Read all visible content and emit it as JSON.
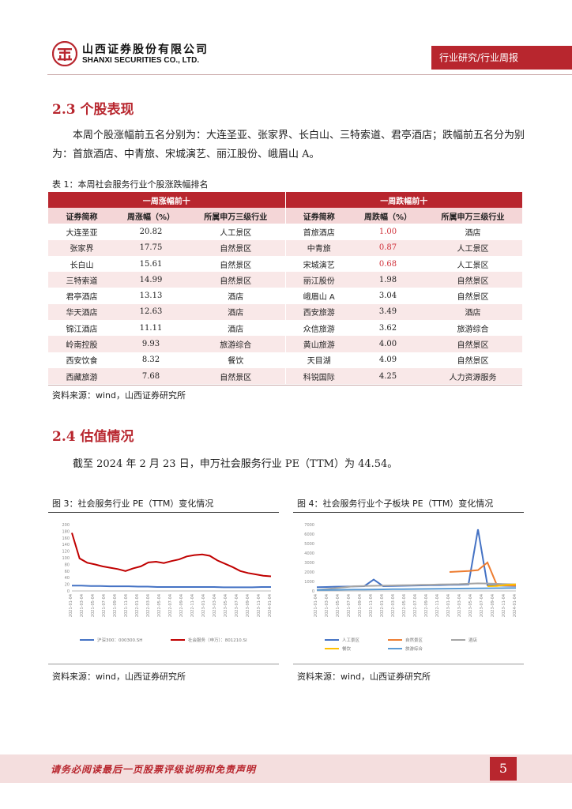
{
  "header": {
    "company_cn": "山西证券股份有限公司",
    "company_en": "SHANXI SECURITIES CO., LTD.",
    "report_type": "行业研究/行业周报"
  },
  "section_stock": {
    "heading": "2.3  个股表现",
    "paragraph": "本周个股涨幅前五名分别为：大连圣亚、张家界、长白山、三特索道、君亭酒店；跌幅前五名分为别为：首旅酒店、中青旅、宋城演艺、丽江股份、峨眉山 A。",
    "table_caption": "表 1：本周社会服务行业个股涨跌幅排名",
    "table": {
      "group_up": "一周涨幅前十",
      "group_down": "一周跌幅前十",
      "columns": [
        "证券简称",
        "周涨幅（%）",
        "所属申万三级行业",
        "证券简称",
        "周跌幅（%）",
        "所属申万三级行业"
      ],
      "rows": [
        [
          "大连圣亚",
          "20.82",
          "人工景区",
          "首旅酒店",
          "1.00",
          "酒店"
        ],
        [
          "张家界",
          "17.75",
          "自然景区",
          "中青旅",
          "0.87",
          "人工景区"
        ],
        [
          "长白山",
          "15.61",
          "自然景区",
          "宋城演艺",
          "0.68",
          "人工景区"
        ],
        [
          "三特索道",
          "14.99",
          "自然景区",
          "丽江股份",
          "1.98",
          "自然景区"
        ],
        [
          "君亭酒店",
          "13.13",
          "酒店",
          "峨眉山 A",
          "3.04",
          "自然景区"
        ],
        [
          "华天酒店",
          "12.63",
          "酒店",
          "西安旅游",
          "3.49",
          "酒店"
        ],
        [
          "锦江酒店",
          "11.11",
          "酒店",
          "众信旅游",
          "3.62",
          "旅游综合"
        ],
        [
          "岭南控股",
          "9.93",
          "旅游综合",
          "黄山旅游",
          "4.00",
          "自然景区"
        ],
        [
          "西安饮食",
          "8.32",
          "餐饮",
          "天目湖",
          "4.09",
          "自然景区"
        ],
        [
          "西藏旅游",
          "7.68",
          "自然景区",
          "科锐国际",
          "4.25",
          "人力资源服务"
        ]
      ],
      "red_down_rows": [
        0,
        1,
        2
      ]
    },
    "source": "资料来源：wind，山西证券研究所"
  },
  "section_valuation": {
    "heading": "2.4  估值情况",
    "paragraph": "截至 2024 年 2 月 23 日，申万社会服务行业 PE（TTM）为 44.54。",
    "fig3_caption": "图 3：社会服务行业 PE（TTM）变化情况",
    "fig4_caption": "图 4：社会服务行业个子板块 PE（TTM）变化情况",
    "source_left": "资料来源：wind，山西证券研究所",
    "source_right": "资料来源：wind，山西证券研究所"
  },
  "chart_data": [
    {
      "type": "line",
      "y_ticks": [
        "200",
        "180",
        "160",
        "140",
        "120",
        "100",
        "80",
        "60",
        "40",
        "20",
        "0"
      ],
      "ylim": [
        0,
        200
      ],
      "x_ticks": [
        "2021-01-04",
        "2021-03-04",
        "2021-05-04",
        "2021-07-04",
        "2021-09-04",
        "2021-11-04",
        "2022-01-04",
        "2022-03-04",
        "2022-05-04",
        "2022-07-04",
        "2022-09-04",
        "2022-11-04",
        "2023-01-04",
        "2023-03-04",
        "2023-05-04",
        "2023-07-04",
        "2023-09-04",
        "2023-11-04",
        "2024-01-04"
      ],
      "legend": [
        "沪深300：000300.SH",
        "社会服务（申万）：801210.SI"
      ],
      "colors": [
        "#4472c4",
        "#c00000"
      ],
      "series": [
        {
          "values": [
            16,
            16,
            15,
            15,
            14,
            14,
            14,
            13,
            13,
            12,
            12,
            12,
            12,
            12,
            12,
            12,
            11,
            11,
            11,
            11,
            12,
            12
          ]
        },
        {
          "values": [
            175,
            98,
            85,
            80,
            74,
            70,
            66,
            60,
            68,
            74,
            86,
            88,
            84,
            90,
            95,
            104,
            108,
            110,
            106,
            92,
            82,
            72,
            60,
            54,
            50,
            46,
            44
          ]
        }
      ]
    },
    {
      "type": "line",
      "y_ticks": [
        "7000",
        "6000",
        "5000",
        "4000",
        "3000",
        "2000",
        "1000",
        "0"
      ],
      "ylim": [
        0,
        7000
      ],
      "x_ticks": [
        "2021-01-04",
        "2021-03-04",
        "2021-05-04",
        "2021-07-04",
        "2021-09-04",
        "2021-11-04",
        "2022-01-04",
        "2022-03-04",
        "2022-05-04",
        "2022-07-04",
        "2022-09-04",
        "2022-11-04",
        "2023-01-04",
        "2023-03-04",
        "2023-05-04",
        "2023-07-04",
        "2023-09-04",
        "2023-11-04",
        "2024-01-04"
      ],
      "legend": [
        "人工景区",
        "自然景区",
        "酒店",
        "餐饮",
        "旅游综合"
      ],
      "colors": [
        "#4472c4",
        "#ed7d31",
        "#a5a5a5",
        "#ffc000",
        "#5b9bd5"
      ],
      "series": [
        {
          "values": [
            400,
            420,
            450,
            460,
            480,
            500,
            1200,
            500,
            520,
            540,
            560,
            580,
            600,
            620,
            640,
            660,
            700,
            6500,
            600,
            560,
            540,
            520
          ]
        },
        {
          "values": [
            null,
            null,
            null,
            null,
            null,
            null,
            null,
            null,
            null,
            null,
            null,
            null,
            null,
            null,
            2000,
            2050,
            2100,
            2200,
            3000,
            600,
            580,
            560
          ]
        },
        {
          "values": [
            100,
            200,
            300,
            400,
            500,
            520,
            540,
            560,
            580,
            600,
            620,
            640,
            660,
            680,
            700,
            720,
            760,
            800,
            780,
            750,
            720,
            700
          ]
        },
        {
          "values": [
            null,
            null,
            null,
            null,
            null,
            null,
            null,
            null,
            null,
            null,
            null,
            null,
            null,
            null,
            null,
            null,
            null,
            null,
            500,
            520,
            640,
            700
          ]
        },
        {
          "values": [
            100,
            110,
            120,
            130,
            140,
            150,
            160,
            170,
            180,
            190,
            200,
            210,
            220,
            230,
            240,
            250,
            260,
            270,
            280,
            290,
            300,
            310
          ]
        }
      ]
    }
  ],
  "footer": {
    "disclaimer": "请务必阅读最后一页股票评级说明和免责声明",
    "page": "5"
  }
}
